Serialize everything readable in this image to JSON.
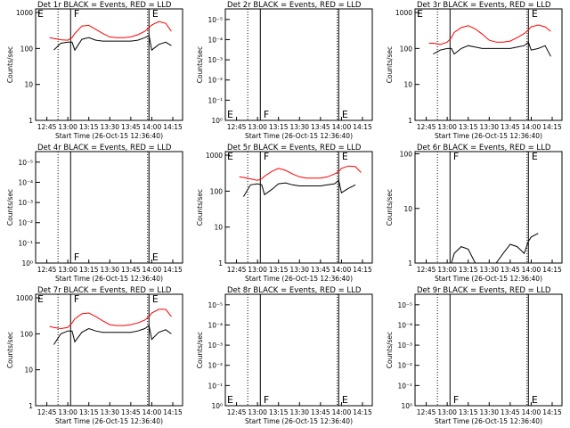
{
  "chart_data": [
    {
      "type": "line",
      "title": "Det 1r BLACK = Events, RED = LLD",
      "x_label": "Start Time (26-Oct-15 12:36:40)",
      "y_label": "Counts/sec",
      "x": [
        "12:47",
        "12:50",
        "12:55",
        "13:00",
        "13:03",
        "13:05",
        "13:10",
        "13:15",
        "13:20",
        "13:25",
        "13:30",
        "13:35",
        "13:40",
        "13:45",
        "13:50",
        "13:55",
        "13:58",
        "14:00",
        "14:05",
        "14:10",
        "14:14"
      ],
      "series": [
        {
          "color": "#ff0000",
          "values": [
            200,
            190,
            175,
            170,
            200,
            260,
            420,
            440,
            340,
            260,
            210,
            200,
            200,
            210,
            240,
            300,
            380,
            450,
            560,
            500,
            300
          ]
        },
        {
          "color": "#000000",
          "values": [
            null,
            90,
            140,
            150,
            150,
            90,
            180,
            200,
            170,
            160,
            160,
            160,
            160,
            160,
            170,
            200,
            230,
            90,
            130,
            150,
            120
          ]
        }
      ],
      "xlim": [
        "12:37",
        "14:22"
      ],
      "xticks": [
        "12:45",
        "13:00",
        "13:15",
        "13:30",
        "13:45",
        "14:00",
        "14:15"
      ],
      "ylim": [
        1,
        1260
      ],
      "yticks": [
        1,
        10,
        100,
        1000
      ],
      "log_y": true,
      "vlines": [
        {
          "x": "12:53",
          "style": "dotted"
        },
        {
          "x": "13:02",
          "style": "solid"
        },
        {
          "x": "13:57",
          "style": "dotted"
        },
        {
          "x": "13:58",
          "style": "solid"
        }
      ],
      "annotation_position": "top",
      "annotations": [
        {
          "x": "12:37",
          "text": "E"
        },
        {
          "x": "13:03",
          "text": "F"
        },
        {
          "x": "13:59",
          "text": "E"
        }
      ]
    },
    {
      "type": "line",
      "title": "Det 2r BLACK = Events, RED = LLD",
      "x_label": "Start Time (26-Oct-15 12:36:40)",
      "y_label": "Counts/sec",
      "x": [],
      "series": [],
      "xlim": [
        "12:37",
        "14:22"
      ],
      "xticks": [
        "12:45",
        "13:00",
        "13:15",
        "13:30",
        "13:45",
        "14:00",
        "14:15"
      ],
      "ylim": [
        1,
        3e-06
      ],
      "yticks": [
        {
          "value": 1,
          "label": "10⁰"
        },
        {
          "value": 0.1,
          "label": "10⁻¹"
        },
        {
          "value": 0.01,
          "label": "10⁻²"
        },
        {
          "value": 0.001,
          "label": "10⁻³"
        },
        {
          "value": 0.0001,
          "label": "10⁻⁴"
        },
        {
          "value": 1e-05,
          "label": "10⁻⁵"
        }
      ],
      "log_y": true,
      "vlines": [
        {
          "x": "12:53",
          "style": "dotted"
        },
        {
          "x": "13:02",
          "style": "solid"
        },
        {
          "x": "13:57",
          "style": "dotted"
        },
        {
          "x": "13:58",
          "style": "solid"
        }
      ],
      "annotation_position": "bottom",
      "annotations": [
        {
          "x": "12:37",
          "text": "E"
        },
        {
          "x": "13:03",
          "text": "F"
        },
        {
          "x": "13:59",
          "text": "E"
        }
      ]
    },
    {
      "type": "line",
      "title": "Det 3r BLACK = Events, RED = LLD",
      "x_label": "Start Time (26-Oct-15 12:36:40)",
      "y_label": "Counts/sec",
      "x": [
        "12:47",
        "12:50",
        "12:55",
        "13:00",
        "13:03",
        "13:05",
        "13:10",
        "13:15",
        "13:20",
        "13:25",
        "13:30",
        "13:35",
        "13:40",
        "13:45",
        "13:50",
        "13:55",
        "13:58",
        "14:00",
        "14:05",
        "14:10",
        "14:14"
      ],
      "series": [
        {
          "color": "#ff0000",
          "values": [
            140,
            140,
            130,
            150,
            200,
            280,
            380,
            430,
            350,
            250,
            170,
            150,
            150,
            160,
            200,
            260,
            330,
            400,
            450,
            400,
            300
          ]
        },
        {
          "color": "#000000",
          "values": [
            null,
            70,
            90,
            100,
            100,
            70,
            100,
            120,
            110,
            100,
            100,
            100,
            100,
            100,
            110,
            120,
            150,
            90,
            100,
            120,
            60
          ]
        }
      ],
      "xlim": [
        "12:37",
        "14:22"
      ],
      "xticks": [
        "12:45",
        "13:00",
        "13:15",
        "13:30",
        "13:45",
        "14:00",
        "14:15"
      ],
      "ylim": [
        1,
        1260
      ],
      "yticks": [
        1,
        10,
        100,
        1000
      ],
      "log_y": true,
      "vlines": [
        {
          "x": "12:53",
          "style": "dotted"
        },
        {
          "x": "13:02",
          "style": "solid"
        },
        {
          "x": "13:57",
          "style": "dotted"
        },
        {
          "x": "13:58",
          "style": "solid"
        }
      ],
      "annotation_position": "top",
      "annotations": [
        {
          "x": "12:37",
          "text": "E"
        },
        {
          "x": "13:59",
          "text": "E"
        }
      ]
    },
    {
      "type": "line",
      "title": "Det 4r BLACK = Events, RED = LLD",
      "x_label": "Start Time (26-Oct-15 12:36:40)",
      "y_label": "Counts/sec",
      "x": [],
      "series": [],
      "xlim": [
        "12:37",
        "14:22"
      ],
      "xticks": [
        "12:45",
        "13:00",
        "13:15",
        "13:30",
        "13:45",
        "14:00",
        "14:15"
      ],
      "ylim": [
        1,
        3e-06
      ],
      "yticks": [
        {
          "value": 1,
          "label": "10⁰"
        },
        {
          "value": 0.1,
          "label": "10⁻¹"
        },
        {
          "value": 0.01,
          "label": "10⁻²"
        },
        {
          "value": 0.001,
          "label": "10⁻³"
        },
        {
          "value": 0.0001,
          "label": "10⁻⁴"
        },
        {
          "value": 1e-05,
          "label": "10⁻⁵"
        }
      ],
      "log_y": true,
      "vlines": [
        {
          "x": "12:53",
          "style": "dotted"
        },
        {
          "x": "13:02",
          "style": "solid"
        },
        {
          "x": "13:57",
          "style": "dotted"
        },
        {
          "x": "13:58",
          "style": "solid"
        }
      ],
      "annotation_position": "bottom",
      "annotations": [
        {
          "x": "13:03",
          "text": "F"
        },
        {
          "x": "13:59",
          "text": "E"
        }
      ]
    },
    {
      "type": "line",
      "title": "Det 5r BLACK = Events, RED = LLD",
      "x_label": "Start Time (26-Oct-15 12:36:40)",
      "y_label": "Counts/sec",
      "x": [
        "12:47",
        "12:50",
        "12:55",
        "13:00",
        "13:03",
        "13:05",
        "13:10",
        "13:15",
        "13:20",
        "13:25",
        "13:30",
        "13:35",
        "13:40",
        "13:45",
        "13:50",
        "13:55",
        "13:58",
        "14:00",
        "14:05",
        "14:10",
        "14:14"
      ],
      "series": [
        {
          "color": "#ff0000",
          "values": [
            250,
            240,
            220,
            200,
            220,
            260,
            350,
            430,
            380,
            300,
            250,
            230,
            230,
            230,
            250,
            300,
            350,
            430,
            500,
            480,
            330
          ]
        },
        {
          "color": "#000000",
          "values": [
            null,
            70,
            150,
            160,
            150,
            80,
            110,
            160,
            170,
            150,
            140,
            140,
            140,
            140,
            150,
            160,
            200,
            90,
            120,
            150,
            null
          ]
        }
      ],
      "xlim": [
        "12:37",
        "14:22"
      ],
      "xticks": [
        "12:45",
        "13:00",
        "13:15",
        "13:30",
        "13:45",
        "14:00",
        "14:15"
      ],
      "ylim": [
        1,
        1260
      ],
      "yticks": [
        1,
        10,
        100,
        1000
      ],
      "log_y": true,
      "vlines": [
        {
          "x": "12:53",
          "style": "dotted"
        },
        {
          "x": "13:02",
          "style": "solid"
        },
        {
          "x": "13:57",
          "style": "dotted"
        },
        {
          "x": "13:58",
          "style": "solid"
        }
      ],
      "annotation_position": "top",
      "annotations": [
        {
          "x": "12:37",
          "text": "E"
        },
        {
          "x": "13:03",
          "text": "F"
        },
        {
          "x": "13:59",
          "text": "E"
        }
      ]
    },
    {
      "type": "line",
      "title": "Det 6r BLACK = Events, RED = LLD",
      "x_label": "Start Time (26-Oct-15 12:36:40)",
      "y_label": "Counts/sec",
      "x": [
        "12:47",
        "12:50",
        "12:55",
        "13:00",
        "13:03",
        "13:05",
        "13:10",
        "13:15",
        "13:20",
        "13:25",
        "13:30",
        "13:35",
        "13:40",
        "13:45",
        "13:50",
        "13:55",
        "13:58",
        "14:00",
        "14:05",
        "14:10",
        "14:14"
      ],
      "series": [
        {
          "color": "#000000",
          "values": [
            null,
            null,
            null,
            null,
            1,
            1.5,
            2,
            1.8,
            1,
            1,
            1,
            1,
            1.5,
            2.2,
            2,
            1.5,
            2.5,
            3,
            3.5,
            null,
            null
          ]
        }
      ],
      "xlim": [
        "12:37",
        "14:22"
      ],
      "xticks": [
        "12:45",
        "13:00",
        "13:15",
        "13:30",
        "13:45",
        "14:00",
        "14:15"
      ],
      "ylim": [
        1,
        110
      ],
      "yticks": [
        1,
        10,
        100
      ],
      "log_y": true,
      "vlines": [
        {
          "x": "12:53",
          "style": "dotted"
        },
        {
          "x": "13:02",
          "style": "solid"
        },
        {
          "x": "13:57",
          "style": "dotted"
        },
        {
          "x": "13:58",
          "style": "solid"
        }
      ],
      "annotation_position": "top",
      "annotations": [
        {
          "x": "13:03",
          "text": "F"
        },
        {
          "x": "13:59",
          "text": "E"
        }
      ]
    },
    {
      "type": "line",
      "title": "Det 7r BLACK = Events, RED = LLD",
      "x_label": "Start Time (26-Oct-15 12:36:40)",
      "y_label": "Counts/sec",
      "x": [
        "12:47",
        "12:50",
        "12:55",
        "13:00",
        "13:03",
        "13:05",
        "13:10",
        "13:15",
        "13:20",
        "13:25",
        "13:30",
        "13:35",
        "13:40",
        "13:45",
        "13:50",
        "13:55",
        "13:58",
        "14:00",
        "14:05",
        "14:10",
        "14:14"
      ],
      "series": [
        {
          "color": "#ff0000",
          "values": [
            160,
            150,
            140,
            150,
            200,
            260,
            360,
            380,
            300,
            230,
            180,
            170,
            170,
            180,
            200,
            240,
            300,
            380,
            480,
            480,
            300
          ]
        },
        {
          "color": "#000000",
          "values": [
            null,
            50,
            100,
            120,
            120,
            60,
            110,
            140,
            120,
            110,
            110,
            110,
            110,
            110,
            120,
            140,
            170,
            70,
            110,
            130,
            100
          ]
        }
      ],
      "xlim": [
        "12:37",
        "14:22"
      ],
      "xticks": [
        "12:45",
        "13:00",
        "13:15",
        "13:30",
        "13:45",
        "14:00",
        "14:15"
      ],
      "ylim": [
        1,
        1260
      ],
      "yticks": [
        1,
        10,
        100,
        1000
      ],
      "log_y": true,
      "vlines": [
        {
          "x": "12:53",
          "style": "dotted"
        },
        {
          "x": "13:02",
          "style": "solid"
        },
        {
          "x": "13:57",
          "style": "dotted"
        },
        {
          "x": "13:58",
          "style": "solid"
        }
      ],
      "annotation_position": "top",
      "annotations": [
        {
          "x": "12:37",
          "text": "E"
        },
        {
          "x": "13:03",
          "text": "F"
        },
        {
          "x": "13:59",
          "text": "E"
        }
      ]
    },
    {
      "type": "line",
      "title": "Det 8r BLACK = Events, RED = LLD",
      "x_label": "Start Time (26-Oct-15 12:36:40)",
      "y_label": "Counts/sec",
      "x": [],
      "series": [],
      "xlim": [
        "12:37",
        "14:22"
      ],
      "xticks": [
        "12:45",
        "13:00",
        "13:15",
        "13:30",
        "13:45",
        "14:00",
        "14:15"
      ],
      "ylim": [
        1,
        3e-06
      ],
      "yticks": [
        {
          "value": 1,
          "label": "10⁰"
        },
        {
          "value": 0.1,
          "label": "10⁻¹"
        },
        {
          "value": 0.01,
          "label": "10⁻²"
        },
        {
          "value": 0.001,
          "label": "10⁻³"
        },
        {
          "value": 0.0001,
          "label": "10⁻⁴"
        },
        {
          "value": 1e-05,
          "label": "10⁻⁵"
        }
      ],
      "log_y": true,
      "vlines": [
        {
          "x": "12:53",
          "style": "dotted"
        },
        {
          "x": "13:02",
          "style": "solid"
        },
        {
          "x": "13:57",
          "style": "dotted"
        },
        {
          "x": "13:58",
          "style": "solid"
        }
      ],
      "annotation_position": "bottom",
      "annotations": [
        {
          "x": "12:37",
          "text": "E"
        },
        {
          "x": "13:03",
          "text": "F"
        },
        {
          "x": "13:59",
          "text": "E"
        }
      ]
    },
    {
      "type": "line",
      "title": "Det 9r BLACK = Events, RED = LLD",
      "x_label": "Start Time (26-Oct-15 12:36:40)",
      "y_label": "Counts/sec",
      "x": [],
      "series": [],
      "xlim": [
        "12:37",
        "14:22"
      ],
      "xticks": [
        "12:45",
        "13:00",
        "13:15",
        "13:30",
        "13:45",
        "14:00",
        "14:15"
      ],
      "ylim": [
        1,
        3e-06
      ],
      "yticks": [
        {
          "value": 1,
          "label": "10⁰"
        },
        {
          "value": 0.1,
          "label": "10⁻¹"
        },
        {
          "value": 0.01,
          "label": "10⁻²"
        },
        {
          "value": 0.001,
          "label": "10⁻³"
        },
        {
          "value": 0.0001,
          "label": "10⁻⁴"
        },
        {
          "value": 1e-05,
          "label": "10⁻⁵"
        }
      ],
      "log_y": true,
      "vlines": [
        {
          "x": "12:53",
          "style": "dotted"
        },
        {
          "x": "13:02",
          "style": "solid"
        },
        {
          "x": "13:57",
          "style": "dotted"
        },
        {
          "x": "13:58",
          "style": "solid"
        }
      ],
      "annotation_position": "bottom",
      "annotations": [
        {
          "x": "13:03",
          "text": "F"
        },
        {
          "x": "13:59",
          "text": "E"
        }
      ]
    }
  ]
}
